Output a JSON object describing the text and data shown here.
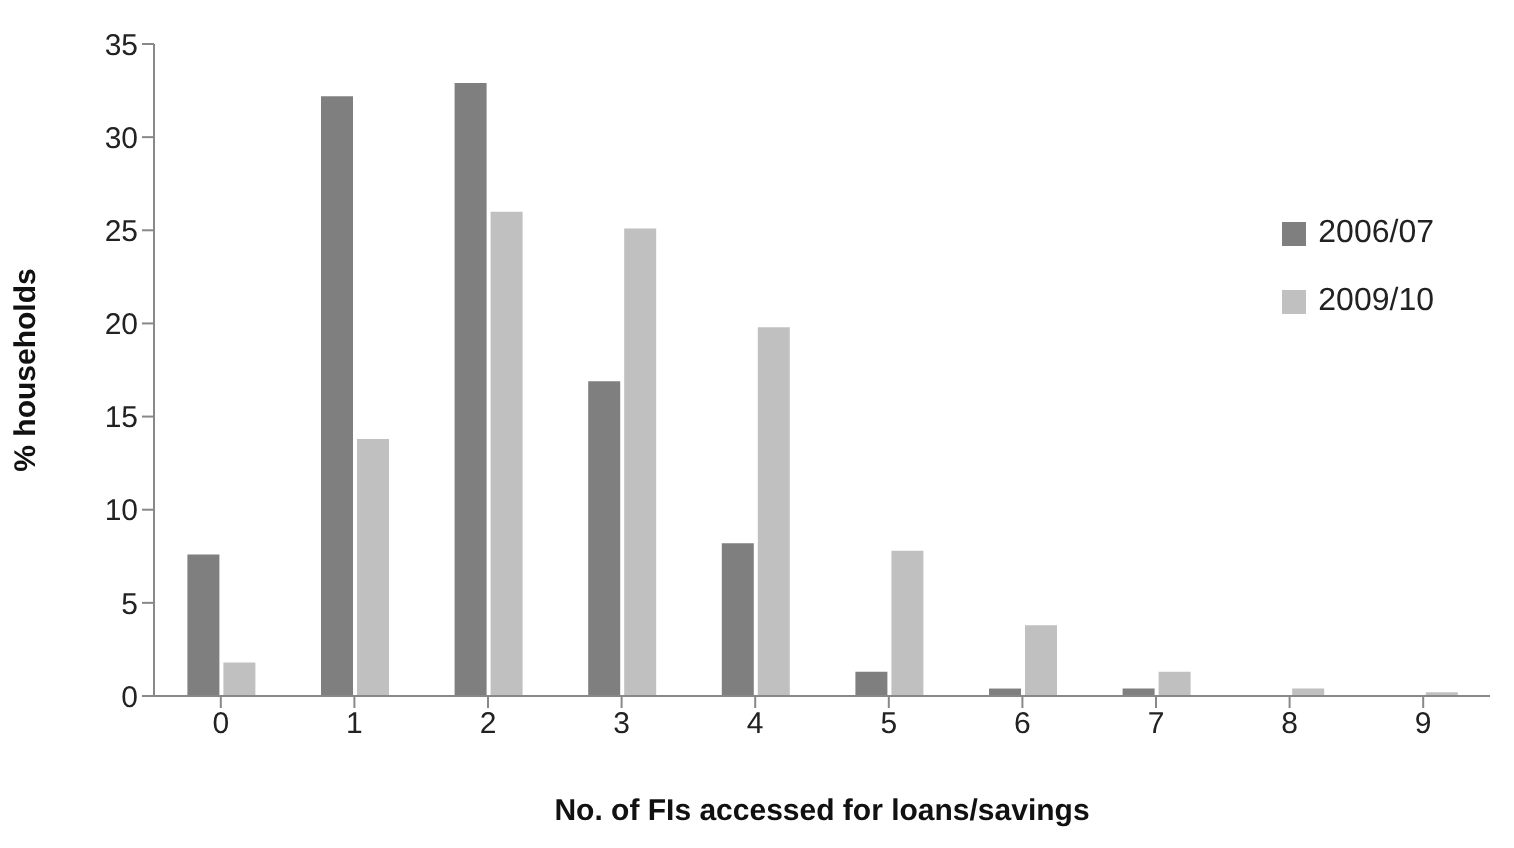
{
  "chart_data": {
    "type": "bar",
    "xlabel": "No. of FIs accessed for loans/savings",
    "ylabel": "% households",
    "categories": [
      "0",
      "1",
      "2",
      "3",
      "4",
      "5",
      "6",
      "7",
      "8",
      "9"
    ],
    "series": [
      {
        "name": "2006/07",
        "color": "#7f7f7f",
        "values": [
          7.6,
          32.2,
          32.9,
          16.9,
          8.2,
          1.3,
          0.4,
          0.4,
          0,
          0
        ]
      },
      {
        "name": "2009/10",
        "color": "#c0c0c0",
        "values": [
          1.8,
          13.8,
          26,
          25.1,
          19.8,
          7.8,
          3.8,
          1.3,
          0.4,
          0.2
        ]
      }
    ],
    "ylim": [
      0,
      35
    ],
    "yticks": [
      0,
      5,
      10,
      15,
      20,
      25,
      30,
      35
    ],
    "grid": false,
    "legend": "top right"
  }
}
